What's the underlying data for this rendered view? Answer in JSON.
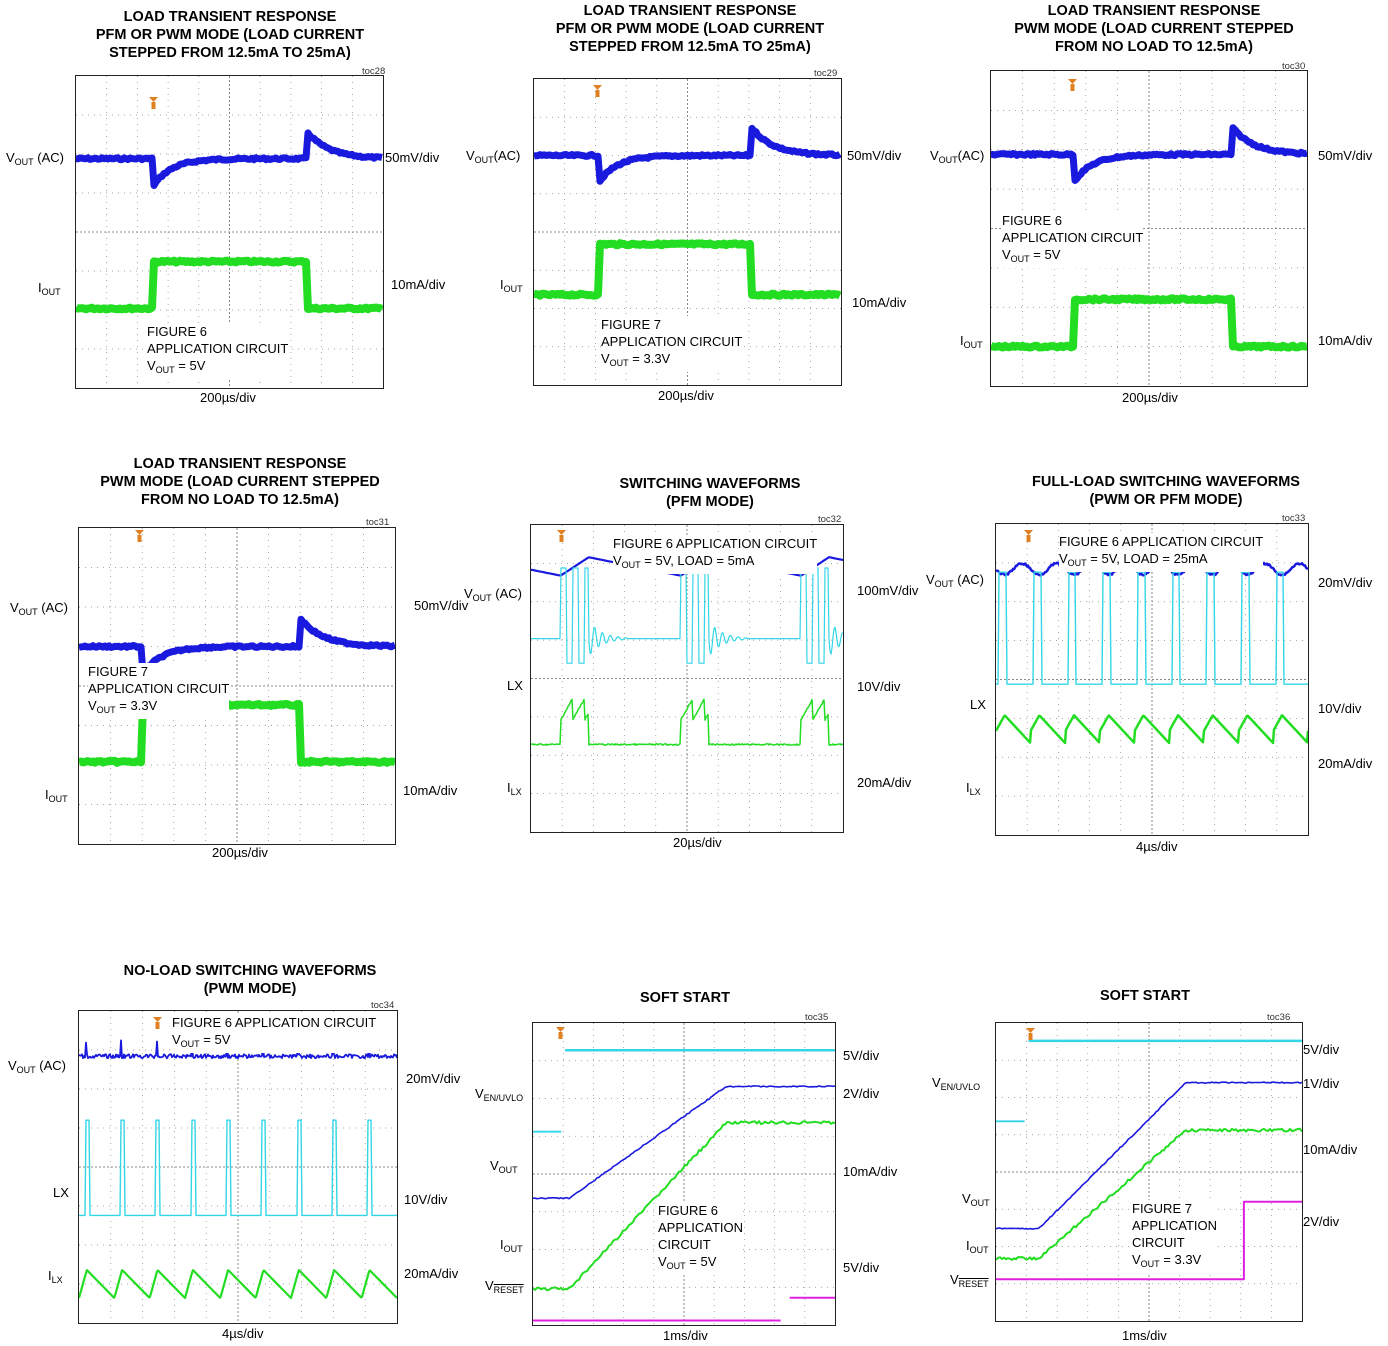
{
  "colors": {
    "vout": "#1a1adf",
    "iout": "#22dd22",
    "lx": "#33d6e6",
    "reset": "#e020e0",
    "grid": "#888888",
    "marker": "#e08020"
  },
  "chart_data": [
    {
      "id": "toc28",
      "type": "line",
      "title": "LOAD TRANSIENT RESPONSE\nPFM OR PWM MODE (LOAD CURRENT\nSTEPPED FROM 12.5mA TO 25mA)",
      "x_scale": "200µs/div",
      "annotation": [
        "FIGURE 6",
        "APPLICATION CIRCUIT",
        "V_OUT = 5V"
      ],
      "series": [
        {
          "name": "VOUT (AC)",
          "scale": "50mV/div",
          "shape": "load-transient-vout",
          "step_down_div": 2.5,
          "step_up_div": 7.5
        },
        {
          "name": "IOUT",
          "scale": "10mA/div",
          "low_mA": 12.5,
          "high_mA": 25,
          "step_up_div": 2.5,
          "step_down_div": 7.5
        }
      ]
    },
    {
      "id": "toc29",
      "type": "line",
      "title": "LOAD TRANSIENT RESPONSE\nPFM OR PWM MODE (LOAD CURRENT\nSTEPPED FROM 12.5mA TO 25mA)",
      "x_scale": "200µs/div",
      "annotation": [
        "FIGURE 7",
        "APPLICATION CIRCUIT",
        "V_OUT = 3.3V"
      ],
      "series": [
        {
          "name": "VOUT (AC)",
          "scale": "50mV/div"
        },
        {
          "name": "IOUT",
          "scale": "10mA/div",
          "low_mA": 12.5,
          "high_mA": 25,
          "step_up_div": 2.1,
          "step_down_div": 7.1
        }
      ]
    },
    {
      "id": "toc30",
      "type": "line",
      "title": "LOAD TRANSIENT RESPONSE\nPWM MODE (LOAD CURRENT STEPPED\nFROM NO LOAD TO 12.5mA)",
      "x_scale": "200µs/div",
      "annotation": [
        "FIGURE 6",
        "APPLICATION CIRCUIT",
        "V_OUT = 5V"
      ],
      "series": [
        {
          "name": "VOUT(AC)",
          "scale": "50mV/div"
        },
        {
          "name": "IOUT",
          "scale": "10mA/div",
          "low_mA": 0,
          "high_mA": 12.5,
          "step_up_div": 2.6,
          "step_down_div": 7.6
        }
      ]
    },
    {
      "id": "toc31",
      "type": "line",
      "title": "LOAD TRANSIENT RESPONSE\nPWM MODE (LOAD CURRENT STEPPED\nFROM NO LOAD TO 12.5mA)",
      "x_scale": "200µs/div",
      "annotation": [
        "FIGURE 7",
        "APPLICATION CIRCUIT",
        "V_OUT = 3.3V"
      ],
      "series": [
        {
          "name": "VOUT (AC)",
          "scale": "50mV/div"
        },
        {
          "name": "IOUT",
          "scale": "10mA/div",
          "low_mA": 0,
          "high_mA": 12.5,
          "step_up_div": 2.0,
          "step_down_div": 7.0
        }
      ]
    },
    {
      "id": "toc32",
      "type": "line",
      "title": "SWITCHING WAVEFORMS\n(PFM MODE)",
      "x_scale": "20µs/div",
      "annotation": [
        "FIGURE 6 APPLICATION CIRCUIT",
        "V_OUT = 5V, LOAD = 5mA"
      ],
      "series": [
        {
          "name": "VOUT (AC)",
          "scale": "100mV/div"
        },
        {
          "name": "LX",
          "scale": "10V/div"
        },
        {
          "name": "ILX",
          "scale": "20mA/div"
        }
      ]
    },
    {
      "id": "toc33",
      "type": "line",
      "title": "FULL-LOAD SWITCHING WAVEFORMS\n(PWM OR PFM MODE)",
      "x_scale": "4µs/div",
      "annotation": [
        "FIGURE 6 APPLICATION CIRCUIT",
        "V_OUT = 5V, LOAD = 25mA"
      ],
      "series": [
        {
          "name": "VOUT (AC)",
          "scale": "20mV/div"
        },
        {
          "name": "LX",
          "scale": "10V/div"
        },
        {
          "name": "ILX",
          "scale": "20mA/div"
        }
      ]
    },
    {
      "id": "toc34",
      "type": "line",
      "title": "NO-LOAD SWITCHING WAVEFORMS\n(PWM MODE)",
      "x_scale": "4µs/div",
      "annotation": [
        "FIGURE 6 APPLICATION CIRCUIT",
        "V_OUT = 5V"
      ],
      "series": [
        {
          "name": "VOUT (AC)",
          "scale": "20mV/div"
        },
        {
          "name": "LX",
          "scale": "10V/div"
        },
        {
          "name": "ILX",
          "scale": "20mA/div"
        }
      ]
    },
    {
      "id": "toc35",
      "type": "line",
      "title": "SOFT START",
      "x_scale": "1ms/div",
      "annotation": [
        "FIGURE 6",
        "APPLICATION",
        "CIRCUIT",
        "V_OUT = 5V"
      ],
      "series": [
        {
          "name": "VEN/UVLO",
          "scale": "5V/div"
        },
        {
          "name": "VOUT",
          "scale": "2V/div"
        },
        {
          "name": "IOUT",
          "scale": "10mA/div"
        },
        {
          "name": "VRESET",
          "scale": "5V/div"
        }
      ]
    },
    {
      "id": "toc36",
      "type": "line",
      "title": "SOFT START",
      "x_scale": "1ms/div",
      "annotation": [
        "FIGURE 7",
        "APPLICATION",
        "CIRCUIT",
        "V_OUT = 3.3V"
      ],
      "series": [
        {
          "name": "VEN/UVLO",
          "scale": "5V/div"
        },
        {
          "name": "VOUT",
          "scale": "1V/div"
        },
        {
          "name": "IOUT",
          "scale": "10mA/div"
        },
        {
          "name": "VRESET",
          "scale": "2V/div"
        }
      ]
    }
  ],
  "text": {
    "t28": {
      "toc": "toc28",
      "l_vout": "V",
      "l_vout_sub": "OUT",
      "l_vout_tail": " (AC)",
      "l_iout": "I",
      "l_iout_sub": "OUT",
      "s1": "50mV/div",
      "s2": "10mA/div",
      "tdiv": "200µs/div",
      "a1": "FIGURE 6",
      "a2": "APPLICATION CIRCUIT",
      "a3a": "V",
      "a3s": "OUT",
      "a3b": " = 5V"
    },
    "t29": {
      "toc": "toc29",
      "l_vout": "V",
      "l_vout_sub": "OUT",
      "l_vout_tail": "(AC)",
      "l_iout": "I",
      "l_iout_sub": "OUT",
      "s1": "50mV/div",
      "s2": "10mA/div",
      "tdiv": "200µs/div",
      "a1": "FIGURE 7",
      "a2": "APPLICATION CIRCUIT",
      "a3a": "V",
      "a3s": "OUT",
      "a3b": " = 3.3V"
    },
    "t30": {
      "toc": "toc30",
      "l_vout": "V",
      "l_vout_sub": "OUT",
      "l_vout_tail": "(AC)",
      "l_iout": "I",
      "l_iout_sub": "OUT",
      "s1": "50mV/div",
      "s2": "10mA/div",
      "tdiv": "200µs/div",
      "a1": "FIGURE 6",
      "a2": "APPLICATION CIRCUIT",
      "a3a": "V",
      "a3s": "OUT",
      "a3b": " = 5V"
    },
    "t31": {
      "toc": "toc31",
      "l_vout": "V",
      "l_vout_sub": "OUT",
      "l_vout_tail": " (AC)",
      "l_iout": "I",
      "l_iout_sub": "OUT",
      "s1": "50mV/div",
      "s2": "10mA/div",
      "tdiv": "200µs/div",
      "a1": "FIGURE 7",
      "a2": "APPLICATION CIRCUIT",
      "a3a": "V",
      "a3s": "OUT",
      "a3b": " = 3.3V"
    },
    "t32": {
      "toc": "toc32",
      "l_vout": "V",
      "l_vout_sub": "OUT",
      "l_vout_tail": " (AC)",
      "l_lx": "LX",
      "l_ilx": "I",
      "l_ilx_sub": "LX",
      "s1": "100mV/div",
      "s2": "10V/div",
      "s3": "20mA/div",
      "tdiv": "20µs/div",
      "a1": "FIGURE 6 APPLICATION CIRCUIT",
      "a2a": "V",
      "a2s": "OUT",
      "a2b": " = 5V, LOAD = 5mA"
    },
    "t33": {
      "toc": "toc33",
      "l_vout": "V",
      "l_vout_sub": "OUT",
      "l_vout_tail": " (AC)",
      "l_lx": "LX",
      "l_ilx": "I",
      "l_ilx_sub": "LX",
      "s1": "20mV/div",
      "s2": "10V/div",
      "s3": "20mA/div",
      "tdiv": "4µs/div",
      "a1": "FIGURE 6 APPLICATION CIRCUIT",
      "a2a": "V",
      "a2s": "OUT",
      "a2b": " = 5V, LOAD = 25mA"
    },
    "t34": {
      "toc": "toc34",
      "l_vout": "V",
      "l_vout_sub": "OUT",
      "l_vout_tail": " (AC)",
      "l_lx": "LX",
      "l_ilx": "I",
      "l_ilx_sub": "LX",
      "s1": "20mV/div",
      "s2": "10V/div",
      "s3": "20mA/div",
      "tdiv": "4µs/div",
      "a1": "FIGURE 6 APPLICATION CIRCUIT",
      "a2a": "V",
      "a2s": "OUT",
      "a2b": " = 5V"
    },
    "t35": {
      "toc": "toc35",
      "l_en": "V",
      "l_en_sub": "EN/UVLO",
      "l_vout": "V",
      "l_vout_sub": "OUT",
      "l_iout": "I",
      "l_iout_sub": "OUT",
      "l_rst": "V",
      "l_rst_sub": "RESET",
      "s1": "5V/div",
      "s2": "2V/div",
      "s3": "10mA/div",
      "s4": "5V/div",
      "tdiv": "1ms/div",
      "a1": "FIGURE 6",
      "a2": "APPLICATION",
      "a3": "CIRCUIT",
      "a4a": "V",
      "a4s": "OUT",
      "a4b": " = 5V"
    },
    "t36": {
      "toc": "toc36",
      "l_en": "V",
      "l_en_sub": "EN/UVLO",
      "l_vout": "V",
      "l_vout_sub": "OUT",
      "l_iout": "I",
      "l_iout_sub": "OUT",
      "l_rst": "V",
      "l_rst_sub": "RESET",
      "s1": "5V/div",
      "s2": "1V/div",
      "s3": "10mA/div",
      "s4": "2V/div",
      "tdiv": "1ms/div",
      "a1": "FIGURE 7",
      "a2": "APPLICATION",
      "a3": "CIRCUIT",
      "a4a": "V",
      "a4s": "OUT",
      "a4b": " = 3.3V"
    }
  }
}
